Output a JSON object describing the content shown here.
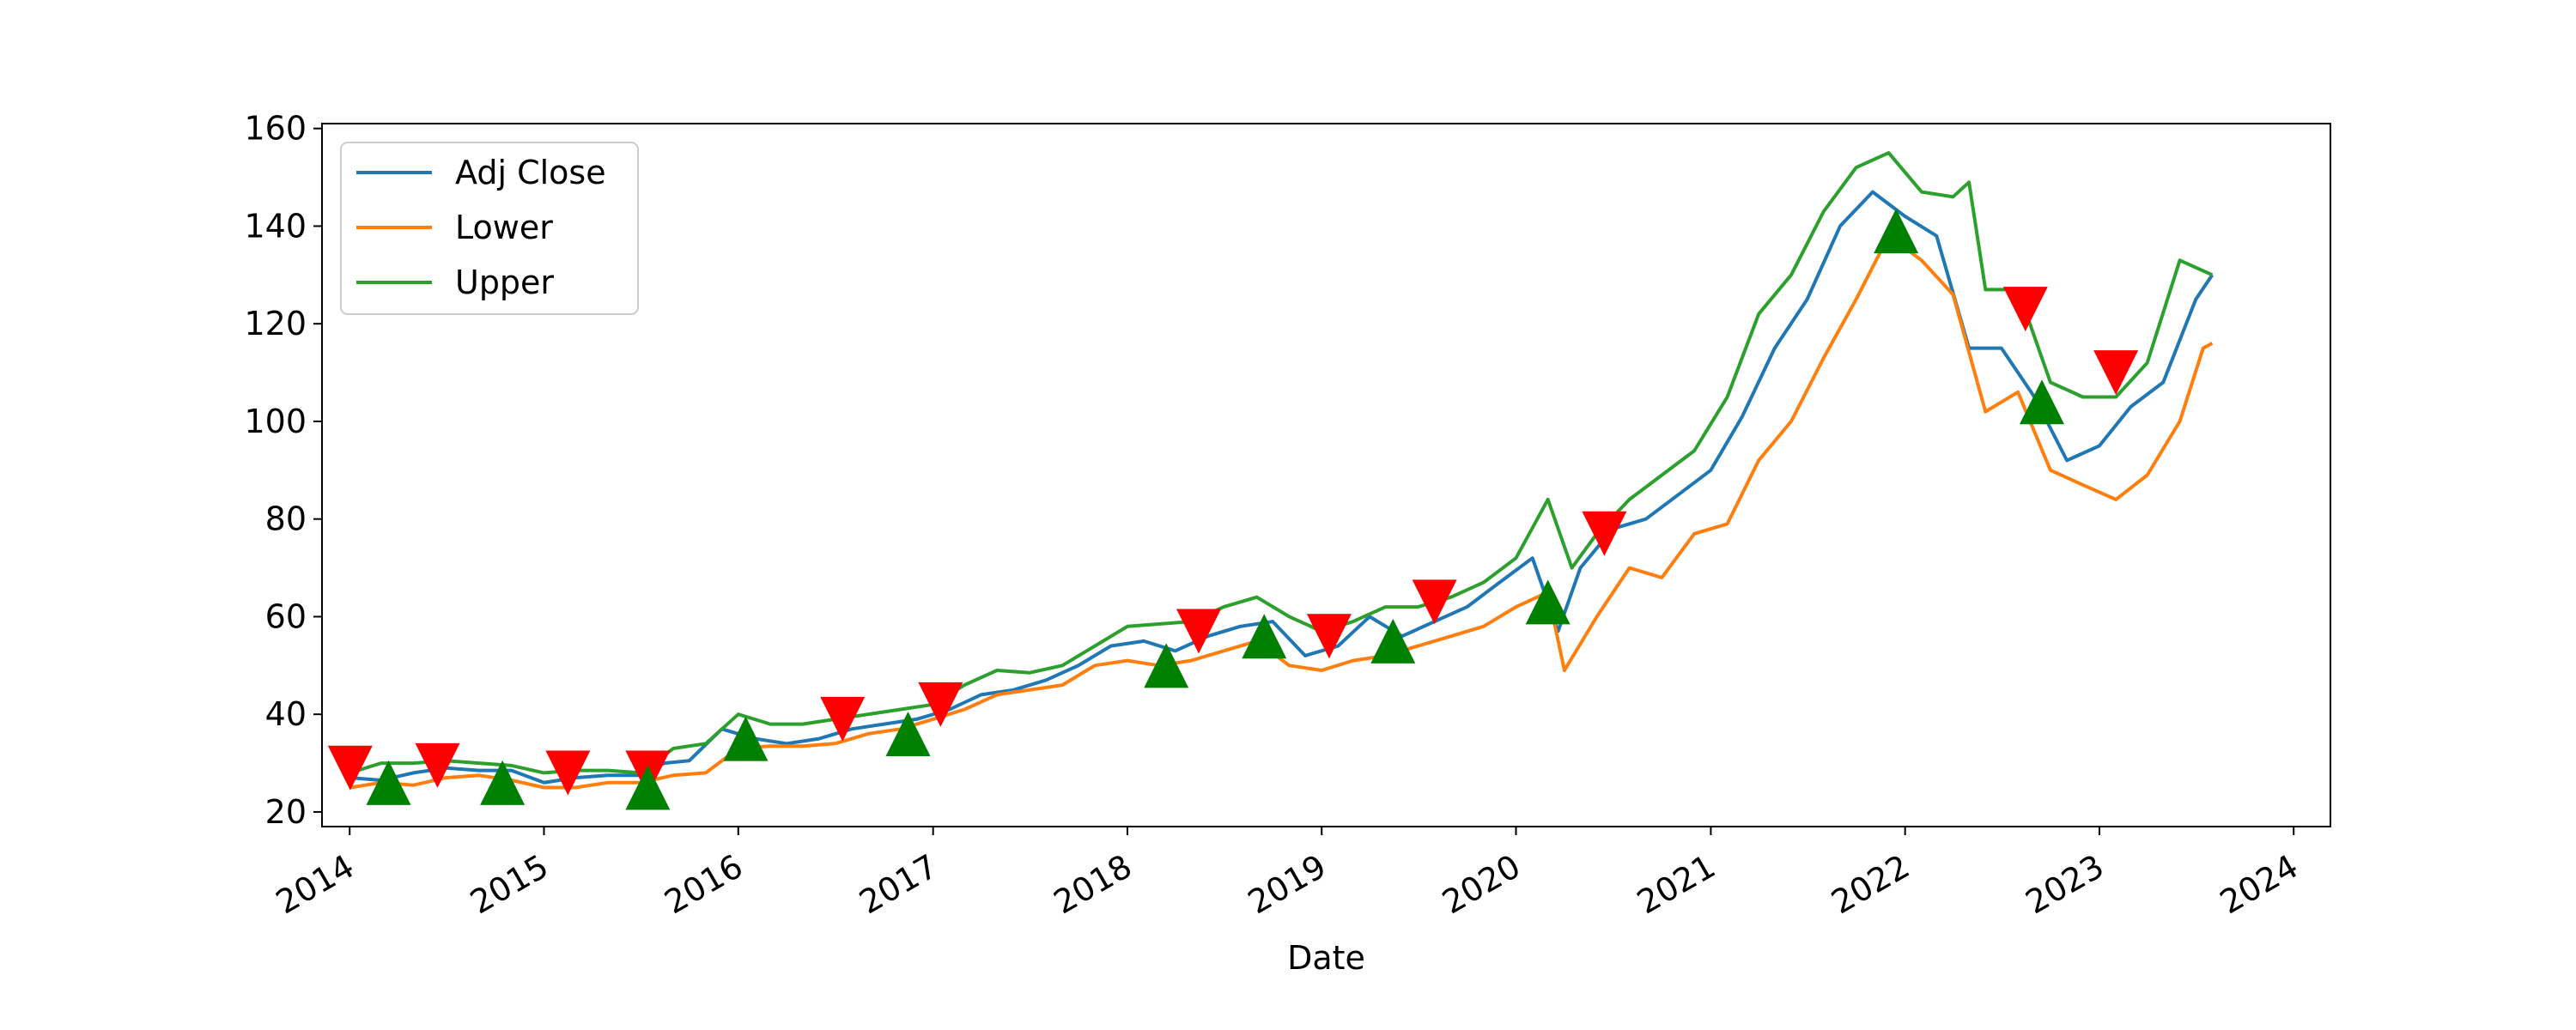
{
  "chart_data": {
    "type": "line",
    "title": "",
    "xlabel": "Date",
    "ylabel": "",
    "xlim": [
      "2013-11-10",
      "2024-03-10"
    ],
    "ylim": [
      17,
      161
    ],
    "x_ticks": [
      "2014",
      "2015",
      "2016",
      "2017",
      "2018",
      "2019",
      "2020",
      "2021",
      "2022",
      "2023",
      "2024"
    ],
    "y_ticks": [
      20,
      40,
      60,
      80,
      100,
      120,
      140,
      160
    ],
    "legend": {
      "location": "upper left",
      "entries": [
        "Adj Close",
        "Lower",
        "Upper"
      ]
    },
    "grid": false,
    "series": [
      {
        "name": "Adj Close",
        "color": "#1f77b4",
        "points": [
          [
            "2014-01-02",
            27
          ],
          [
            "2014-03-01",
            26.5
          ],
          [
            "2014-05-01",
            28
          ],
          [
            "2014-07-01",
            29
          ],
          [
            "2014-09-01",
            28.5
          ],
          [
            "2014-11-01",
            28.5
          ],
          [
            "2015-01-01",
            26
          ],
          [
            "2015-03-01",
            27
          ],
          [
            "2015-05-01",
            27.5
          ],
          [
            "2015-07-01",
            27.5
          ],
          [
            "2015-08-15",
            30
          ],
          [
            "2015-10-01",
            30.5
          ],
          [
            "2015-12-01",
            37
          ],
          [
            "2016-02-01",
            35
          ],
          [
            "2016-04-01",
            34
          ],
          [
            "2016-06-01",
            35
          ],
          [
            "2016-08-01",
            37
          ],
          [
            "2016-10-01",
            38
          ],
          [
            "2016-12-01",
            39
          ],
          [
            "2017-02-01",
            41
          ],
          [
            "2017-04-01",
            44
          ],
          [
            "2017-06-01",
            45
          ],
          [
            "2017-08-01",
            47
          ],
          [
            "2017-10-01",
            50
          ],
          [
            "2017-12-01",
            54
          ],
          [
            "2018-02-01",
            55
          ],
          [
            "2018-04-01",
            53
          ],
          [
            "2018-06-01",
            56
          ],
          [
            "2018-08-01",
            58
          ],
          [
            "2018-10-01",
            59
          ],
          [
            "2018-12-01",
            52
          ],
          [
            "2019-02-01",
            54
          ],
          [
            "2019-04-01",
            60
          ],
          [
            "2019-06-01",
            56
          ],
          [
            "2019-08-01",
            59
          ],
          [
            "2019-10-01",
            62
          ],
          [
            "2019-12-01",
            67
          ],
          [
            "2020-02-01",
            72
          ],
          [
            "2020-03-20",
            57
          ],
          [
            "2020-05-01",
            70
          ],
          [
            "2020-07-01",
            78
          ],
          [
            "2020-09-01",
            80
          ],
          [
            "2020-11-01",
            85
          ],
          [
            "2021-01-01",
            90
          ],
          [
            "2021-03-01",
            101
          ],
          [
            "2021-05-01",
            115
          ],
          [
            "2021-07-01",
            125
          ],
          [
            "2021-09-01",
            140
          ],
          [
            "2021-11-01",
            147
          ],
          [
            "2022-01-01",
            142
          ],
          [
            "2022-03-01",
            138
          ],
          [
            "2022-05-01",
            115
          ],
          [
            "2022-07-01",
            115
          ],
          [
            "2022-09-01",
            105
          ],
          [
            "2022-11-01",
            92
          ],
          [
            "2023-01-01",
            95
          ],
          [
            "2023-03-01",
            103
          ],
          [
            "2023-05-01",
            108
          ],
          [
            "2023-07-01",
            125
          ],
          [
            "2023-08-01",
            130
          ]
        ]
      },
      {
        "name": "Lower",
        "color": "#ff7f0e",
        "points": [
          [
            "2014-01-02",
            25
          ],
          [
            "2014-03-01",
            26
          ],
          [
            "2014-05-01",
            25.5
          ],
          [
            "2014-07-01",
            27
          ],
          [
            "2014-09-01",
            27.5
          ],
          [
            "2014-11-01",
            26.5
          ],
          [
            "2015-01-01",
            25
          ],
          [
            "2015-03-01",
            25
          ],
          [
            "2015-05-01",
            26
          ],
          [
            "2015-07-01",
            26
          ],
          [
            "2015-09-01",
            27.5
          ],
          [
            "2015-11-01",
            28
          ],
          [
            "2016-01-01",
            33
          ],
          [
            "2016-03-01",
            33.5
          ],
          [
            "2016-05-01",
            33.5
          ],
          [
            "2016-07-01",
            34
          ],
          [
            "2016-09-01",
            36
          ],
          [
            "2016-11-01",
            37
          ],
          [
            "2017-01-01",
            39
          ],
          [
            "2017-03-01",
            41
          ],
          [
            "2017-05-01",
            44
          ],
          [
            "2017-07-01",
            45
          ],
          [
            "2017-09-01",
            46
          ],
          [
            "2017-11-01",
            50
          ],
          [
            "2018-01-01",
            51
          ],
          [
            "2018-03-01",
            50
          ],
          [
            "2018-05-01",
            51
          ],
          [
            "2018-07-01",
            53
          ],
          [
            "2018-09-01",
            55
          ],
          [
            "2018-11-01",
            50
          ],
          [
            "2019-01-01",
            49
          ],
          [
            "2019-03-01",
            51
          ],
          [
            "2019-05-01",
            52
          ],
          [
            "2019-07-01",
            54
          ],
          [
            "2019-09-01",
            56
          ],
          [
            "2019-11-01",
            58
          ],
          [
            "2020-01-01",
            62
          ],
          [
            "2020-03-01",
            65
          ],
          [
            "2020-04-01",
            49
          ],
          [
            "2020-06-01",
            60
          ],
          [
            "2020-08-01",
            70
          ],
          [
            "2020-10-01",
            68
          ],
          [
            "2020-12-01",
            77
          ],
          [
            "2021-02-01",
            79
          ],
          [
            "2021-04-01",
            92
          ],
          [
            "2021-06-01",
            100
          ],
          [
            "2021-08-01",
            113
          ],
          [
            "2021-10-01",
            125
          ],
          [
            "2021-12-01",
            138
          ],
          [
            "2022-02-01",
            133
          ],
          [
            "2022-04-01",
            126
          ],
          [
            "2022-06-01",
            102
          ],
          [
            "2022-08-01",
            106
          ],
          [
            "2022-10-01",
            90
          ],
          [
            "2022-12-01",
            87
          ],
          [
            "2023-02-01",
            84
          ],
          [
            "2023-04-01",
            89
          ],
          [
            "2023-06-01",
            100
          ],
          [
            "2023-07-15",
            115
          ],
          [
            "2023-08-01",
            116
          ]
        ]
      },
      {
        "name": "Upper",
        "color": "#2ca02c",
        "points": [
          [
            "2014-01-02",
            28
          ],
          [
            "2014-03-01",
            30
          ],
          [
            "2014-05-01",
            30
          ],
          [
            "2014-07-01",
            30.5
          ],
          [
            "2014-09-01",
            30
          ],
          [
            "2014-11-01",
            29.5
          ],
          [
            "2015-01-01",
            28
          ],
          [
            "2015-03-01",
            28.5
          ],
          [
            "2015-05-01",
            28.5
          ],
          [
            "2015-07-01",
            28
          ],
          [
            "2015-09-01",
            33
          ],
          [
            "2015-11-01",
            34
          ],
          [
            "2016-01-01",
            40
          ],
          [
            "2016-03-01",
            38
          ],
          [
            "2016-05-01",
            38
          ],
          [
            "2016-07-01",
            39
          ],
          [
            "2016-09-01",
            40
          ],
          [
            "2016-11-01",
            41
          ],
          [
            "2017-01-01",
            42
          ],
          [
            "2017-03-01",
            46
          ],
          [
            "2017-05-01",
            49
          ],
          [
            "2017-07-01",
            48.5
          ],
          [
            "2017-09-01",
            50
          ],
          [
            "2017-11-01",
            54
          ],
          [
            "2018-01-01",
            58
          ],
          [
            "2018-03-01",
            58.5
          ],
          [
            "2018-05-01",
            59
          ],
          [
            "2018-07-01",
            62
          ],
          [
            "2018-09-01",
            64
          ],
          [
            "2018-11-01",
            60
          ],
          [
            "2019-01-01",
            57
          ],
          [
            "2019-03-01",
            59
          ],
          [
            "2019-05-01",
            62
          ],
          [
            "2019-07-01",
            62
          ],
          [
            "2019-09-01",
            64
          ],
          [
            "2019-11-01",
            67
          ],
          [
            "2020-01-01",
            72
          ],
          [
            "2020-03-01",
            84
          ],
          [
            "2020-04-15",
            70
          ],
          [
            "2020-06-01",
            77
          ],
          [
            "2020-08-01",
            84
          ],
          [
            "2020-10-01",
            89
          ],
          [
            "2020-12-01",
            94
          ],
          [
            "2021-02-01",
            105
          ],
          [
            "2021-04-01",
            122
          ],
          [
            "2021-06-01",
            130
          ],
          [
            "2021-08-01",
            143
          ],
          [
            "2021-10-01",
            152
          ],
          [
            "2021-12-01",
            155
          ],
          [
            "2022-02-01",
            147
          ],
          [
            "2022-04-01",
            146
          ],
          [
            "2022-05-01",
            149
          ],
          [
            "2022-06-01",
            127
          ],
          [
            "2022-08-01",
            127
          ],
          [
            "2022-10-01",
            108
          ],
          [
            "2022-12-01",
            105
          ],
          [
            "2023-02-01",
            105
          ],
          [
            "2023-04-01",
            112
          ],
          [
            "2023-06-01",
            133
          ],
          [
            "2023-08-01",
            130
          ]
        ]
      }
    ],
    "sell_signals": [
      [
        "2014-01-02",
        29
      ],
      [
        "2014-06-15",
        29.5
      ],
      [
        "2015-02-15",
        28
      ],
      [
        "2015-07-15",
        28
      ],
      [
        "2016-07-15",
        39
      ],
      [
        "2017-01-15",
        42
      ],
      [
        "2018-05-15",
        57
      ],
      [
        "2019-01-15",
        56
      ],
      [
        "2019-08-01",
        63
      ],
      [
        "2020-06-15",
        77
      ],
      [
        "2022-08-15",
        123
      ],
      [
        "2023-02-01",
        110
      ]
    ],
    "buy_signals": [
      [
        "2014-03-15",
        26
      ],
      [
        "2014-10-15",
        26
      ],
      [
        "2015-07-15",
        25
      ],
      [
        "2016-01-15",
        35
      ],
      [
        "2016-11-15",
        36
      ],
      [
        "2018-03-15",
        50
      ],
      [
        "2018-09-15",
        56
      ],
      [
        "2019-05-15",
        55
      ],
      [
        "2020-03-01",
        63
      ],
      [
        "2021-12-15",
        139
      ],
      [
        "2022-09-15",
        104
      ]
    ],
    "marker_colors": {
      "sell": "#ff0000",
      "buy": "#008000"
    }
  }
}
